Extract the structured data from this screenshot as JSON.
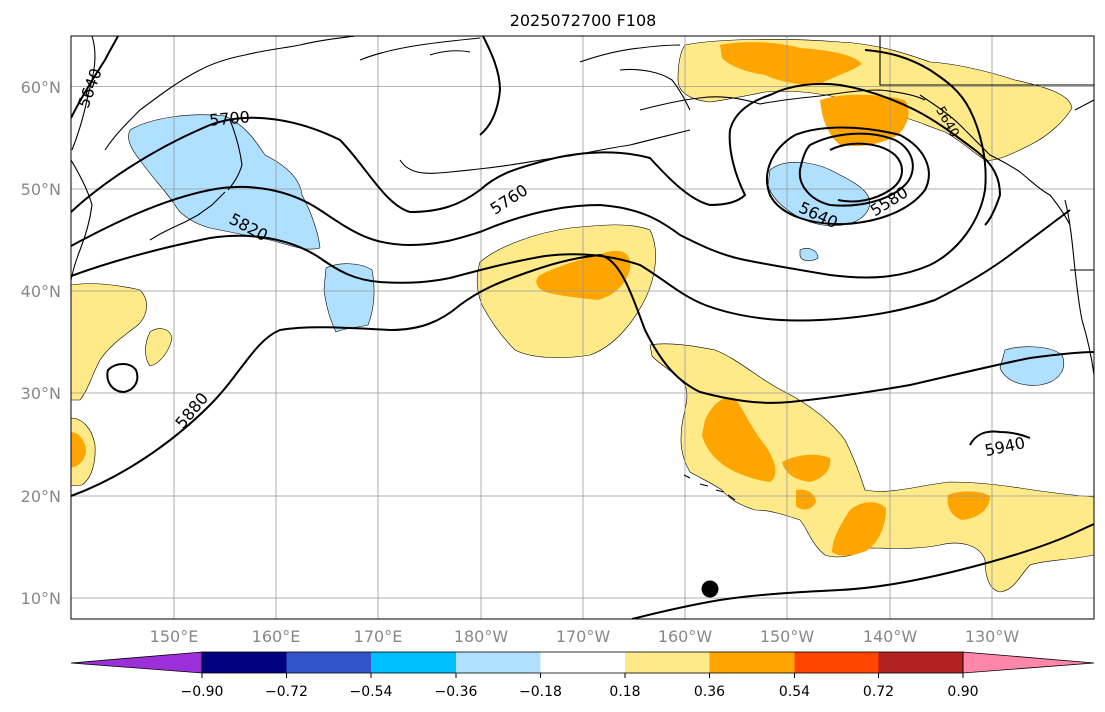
{
  "title": "2025072700 F108",
  "lat_labels": [
    "60°N",
    "50°N",
    "40°N",
    "30°N",
    "20°N",
    "10°N"
  ],
  "lon_labels": [
    "150°E",
    "160°E",
    "170°E",
    "180°W",
    "170°W",
    "160°W",
    "150°W",
    "140°W",
    "130°W"
  ],
  "contour_labels": [
    "5640",
    "5700",
    "5820",
    "5760",
    "5880",
    "5640",
    "5580",
    "5940",
    "5640"
  ],
  "colorbar": {
    "tick_labels": [
      "−0.90",
      "−0.72",
      "−0.54",
      "−0.36",
      "−0.18",
      "0.18",
      "0.36",
      "0.54",
      "0.72",
      "0.90"
    ],
    "colors": [
      "#9b30d8",
      "#000080",
      "#3355cc",
      "#00bfff",
      "#b0e0ff",
      "#ffffff",
      "#ffea8a",
      "#ffa500",
      "#ff4500",
      "#b22222",
      "#ff88aa"
    ]
  },
  "colors": {
    "neg_light": "#b0e0ff",
    "pos_light": "#ffea8a",
    "pos_mid": "#ffa500",
    "contour": "#000000",
    "grid": "#999999"
  }
}
